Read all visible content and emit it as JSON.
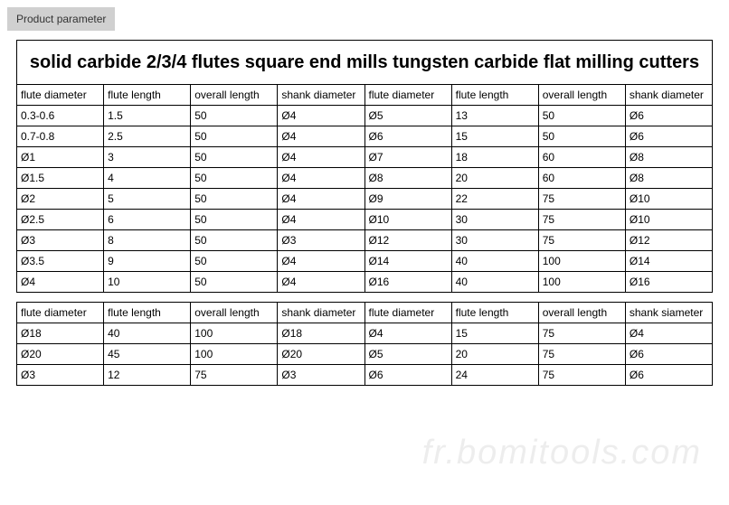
{
  "badge_label": "Product parameter",
  "main_table": {
    "title": "solid carbide 2/3/4 flutes square end mills tungsten carbide flat milling cutters",
    "columns": [
      "flute diameter",
      "flute length",
      "overall length",
      "shank diameter",
      "flute diameter",
      "flute length",
      "overall length",
      "shank diameter"
    ],
    "rows": [
      [
        "0.3-0.6",
        "1.5",
        "50",
        "Ø4",
        "Ø5",
        "13",
        "50",
        "Ø6"
      ],
      [
        "0.7-0.8",
        "2.5",
        "50",
        "Ø4",
        "Ø6",
        "15",
        "50",
        "Ø6"
      ],
      [
        "Ø1",
        "3",
        "50",
        "Ø4",
        "Ø7",
        "18",
        "60",
        "Ø8"
      ],
      [
        "Ø1.5",
        "4",
        "50",
        "Ø4",
        "Ø8",
        "20",
        "60",
        "Ø8"
      ],
      [
        "Ø2",
        "5",
        "50",
        "Ø4",
        "Ø9",
        "22",
        "75",
        "Ø10"
      ],
      [
        "Ø2.5",
        "6",
        "50",
        "Ø4",
        "Ø10",
        "30",
        "75",
        "Ø10"
      ],
      [
        "Ø3",
        "8",
        "50",
        "Ø3",
        "Ø12",
        "30",
        "75",
        "Ø12"
      ],
      [
        "Ø3.5",
        "9",
        "50",
        "Ø4",
        "Ø14",
        "40",
        "100",
        "Ø14"
      ],
      [
        "Ø4",
        "10",
        "50",
        "Ø4",
        "Ø16",
        "40",
        "100",
        "Ø16"
      ]
    ]
  },
  "sub_table": {
    "columns": [
      "flute diameter",
      "flute length",
      "overall length",
      "shank diameter",
      "flute diameter",
      "flute length",
      "overall length",
      "shank siameter"
    ],
    "rows": [
      [
        "Ø18",
        "40",
        "100",
        "Ø18",
        "Ø4",
        "15",
        "75",
        "Ø4"
      ],
      [
        "Ø20",
        "45",
        "100",
        "Ø20",
        "Ø5",
        "20",
        "75",
        "Ø6"
      ],
      [
        "Ø3",
        "12",
        "75",
        "Ø3",
        "Ø6",
        "24",
        "75",
        "Ø6"
      ]
    ]
  },
  "watermark_text": "fr.bomitools.com",
  "style": {
    "badge_bg": "#d0d0d0",
    "badge_color": "#333333",
    "border_color": "#000000",
    "bg": "#ffffff",
    "title_fontsize": 20,
    "cell_fontsize": 12,
    "watermark_color": "#dddddd"
  }
}
